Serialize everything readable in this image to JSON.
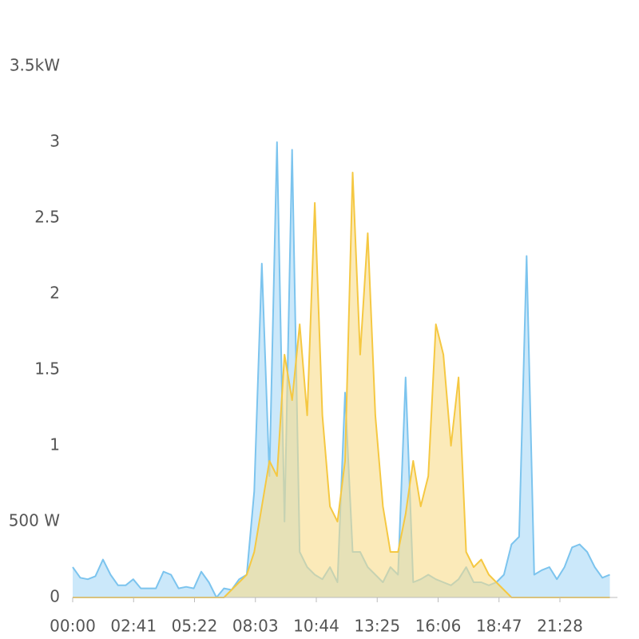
{
  "chart_data": {
    "type": "area",
    "x": [
      0,
      20,
      40,
      60,
      80,
      100,
      120,
      140,
      160,
      180,
      200,
      220,
      240,
      260,
      280,
      300,
      320,
      340,
      360,
      380,
      400,
      420,
      440,
      460,
      480,
      500,
      520,
      540,
      560,
      580,
      600,
      620,
      640,
      660,
      680,
      700,
      720,
      740,
      760,
      780,
      800,
      820,
      840,
      860,
      880,
      900,
      920,
      940,
      960,
      980,
      1000,
      1020,
      1040,
      1060,
      1080,
      1100,
      1120,
      1140,
      1160,
      1180,
      1200,
      1220,
      1240,
      1260,
      1280,
      1300,
      1320,
      1340,
      1360,
      1380,
      1400,
      1420
    ],
    "series": [
      {
        "color": "#7cc4ee",
        "fill": "#a9d9f7",
        "values": [
          0.2,
          0.13,
          0.12,
          0.14,
          0.25,
          0.15,
          0.08,
          0.08,
          0.12,
          0.06,
          0.06,
          0.06,
          0.17,
          0.15,
          0.06,
          0.07,
          0.06,
          0.17,
          0.1,
          0,
          0.06,
          0.05,
          0.12,
          0.15,
          0.7,
          2.2,
          0.8,
          3.0,
          0.5,
          2.95,
          0.3,
          0.2,
          0.15,
          0.12,
          0.2,
          0.1,
          1.35,
          0.3,
          0.3,
          0.2,
          0.15,
          0.1,
          0.2,
          0.15,
          1.45,
          0.1,
          0.12,
          0.15,
          0.12,
          0.1,
          0.08,
          0.12,
          0.2,
          0.1,
          0.1,
          0.08,
          0.1,
          0.15,
          0.35,
          0.4,
          2.25,
          0.15,
          0.18,
          0.2,
          0.12,
          0.2,
          0.33,
          0.35,
          0.3,
          0.2,
          0.13,
          0.15
        ]
      },
      {
        "color": "#f5c842",
        "fill": "#f8dc8a",
        "values": [
          0,
          0,
          0,
          0,
          0,
          0,
          0,
          0,
          0,
          0,
          0,
          0,
          0,
          0,
          0,
          0,
          0,
          0,
          0,
          0,
          0,
          0.05,
          0.1,
          0.15,
          0.3,
          0.6,
          0.9,
          0.8,
          1.6,
          1.3,
          1.8,
          1.2,
          2.6,
          1.2,
          0.6,
          0.5,
          0.9,
          2.8,
          1.6,
          2.4,
          1.2,
          0.6,
          0.3,
          0.3,
          0.55,
          0.9,
          0.6,
          0.8,
          1.8,
          1.6,
          1.0,
          1.45,
          0.3,
          0.2,
          0.25,
          0.15,
          0.1,
          0.05,
          0,
          0,
          0,
          0,
          0,
          0,
          0,
          0,
          0,
          0,
          0,
          0,
          0,
          0
        ]
      }
    ],
    "xlim": [
      0,
      1440
    ],
    "xticks": [
      {
        "value": 0,
        "label": "00:00"
      },
      {
        "value": 161,
        "label": "02:41"
      },
      {
        "value": 322,
        "label": "05:22"
      },
      {
        "value": 483,
        "label": "08:03"
      },
      {
        "value": 644,
        "label": "10:44"
      },
      {
        "value": 805,
        "label": "13:25"
      },
      {
        "value": 966,
        "label": "16:06"
      },
      {
        "value": 1127,
        "label": "18:47"
      },
      {
        "value": 1288,
        "label": "21:28"
      }
    ],
    "ylim": [
      0,
      3.5
    ],
    "yticks": [
      0,
      {
        "value": 0.5,
        "label": "500 W"
      },
      1,
      1.5,
      2,
      2.5,
      3,
      {
        "value": 3.5,
        "label": "3.5kW"
      }
    ]
  }
}
